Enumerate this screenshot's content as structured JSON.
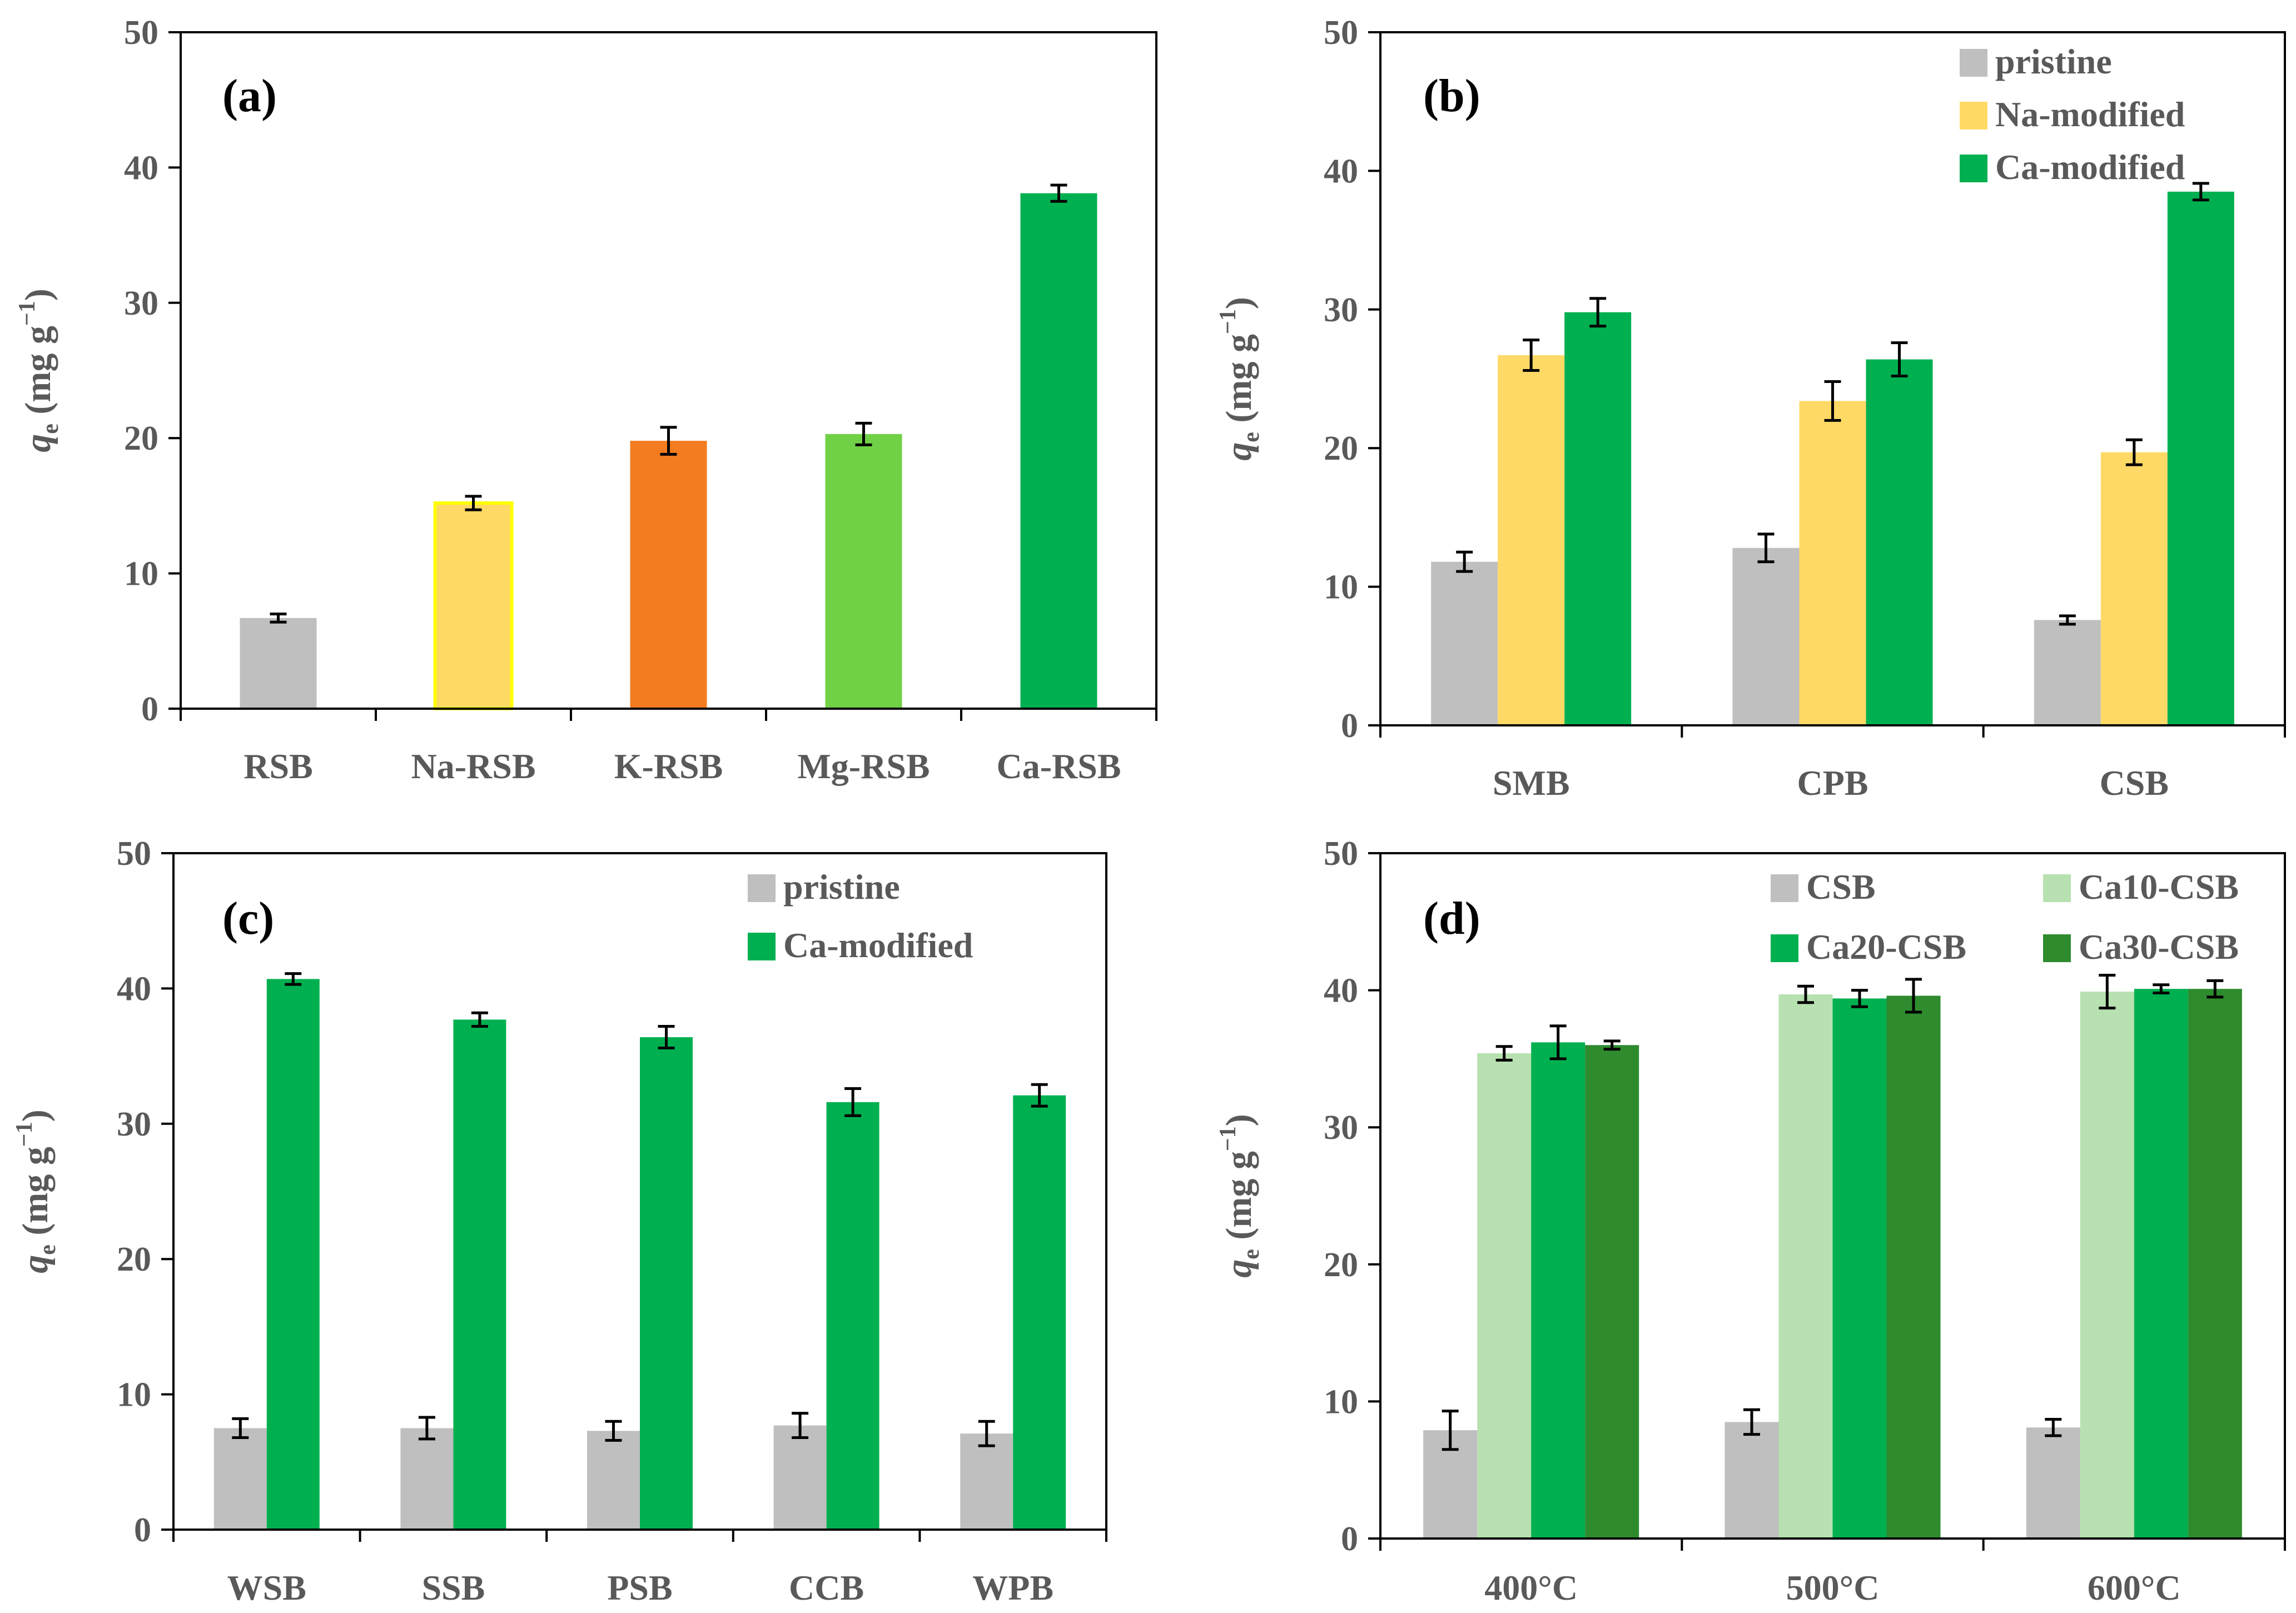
{
  "chart_data": [
    {
      "panel": "(a)",
      "type": "bar",
      "ylabel": {
        "symbol": "q",
        "subscript": "e",
        "units": "(mg g",
        "superscript": "−1",
        "close": ")"
      },
      "ylim": [
        0,
        50
      ],
      "yticks": [
        0,
        10,
        20,
        30,
        40,
        50
      ],
      "categories": [
        "RSB",
        "Na-RSB",
        "K-RSB",
        "Mg-RSB",
        "Ca-RSB"
      ],
      "series": [
        {
          "name": "",
          "values": [
            6.7,
            15.2,
            19.8,
            20.3,
            38.1
          ],
          "errors": [
            0.3,
            0.5,
            1.0,
            0.8,
            0.6
          ],
          "colors": [
            "#bfbfbf",
            "#ffd966",
            "#f47c20",
            "#70d146",
            "#00b050"
          ],
          "strokes": [
            "none",
            "#ffff00",
            "none",
            "none",
            "none"
          ]
        }
      ],
      "legend": null
    },
    {
      "panel": "(b)",
      "type": "bar",
      "ylabel": {
        "symbol": "q",
        "subscript": "e",
        "units": "(mg g",
        "superscript": "−1",
        "close": ")"
      },
      "ylim": [
        0,
        50
      ],
      "yticks": [
        0,
        10,
        20,
        30,
        40,
        50
      ],
      "categories": [
        "SMB",
        "CPB",
        "CSB"
      ],
      "series": [
        {
          "name": "pristine",
          "color": "#bfbfbf",
          "values": [
            11.8,
            12.8,
            7.6
          ],
          "errors": [
            0.7,
            1.0,
            0.3
          ]
        },
        {
          "name": "Na-modified",
          "color": "#ffd966",
          "values": [
            26.7,
            23.4,
            19.7
          ],
          "errors": [
            1.1,
            1.4,
            0.9
          ]
        },
        {
          "name": "Ca-modified",
          "color": "#00b050",
          "values": [
            29.8,
            26.4,
            38.5
          ],
          "errors": [
            1.0,
            1.2,
            0.6
          ]
        }
      ],
      "legend": "top-right"
    },
    {
      "panel": "(c)",
      "type": "bar",
      "ylabel": {
        "symbol": "q",
        "subscript": "e",
        "units": "(mg g",
        "superscript": "−1",
        "close": ")"
      },
      "ylim": [
        0,
        50
      ],
      "yticks": [
        0,
        10,
        20,
        30,
        40,
        50
      ],
      "categories": [
        "WSB",
        "SSB",
        "PSB",
        "CCB",
        "WPB"
      ],
      "series": [
        {
          "name": "pristine",
          "color": "#bfbfbf",
          "values": [
            7.5,
            7.5,
            7.3,
            7.7,
            7.1
          ],
          "errors": [
            0.7,
            0.8,
            0.7,
            0.9,
            0.9
          ]
        },
        {
          "name": "Ca-modified",
          "color": "#00b050",
          "values": [
            40.7,
            37.7,
            36.4,
            31.6,
            32.1
          ],
          "errors": [
            0.4,
            0.5,
            0.8,
            1.0,
            0.8
          ]
        }
      ],
      "legend": "top-right"
    },
    {
      "panel": "(d)",
      "type": "bar",
      "ylabel": {
        "symbol": "q",
        "subscript": "e",
        "units": "(mg g",
        "superscript": "−1",
        "close": ")"
      },
      "ylim": [
        0,
        50
      ],
      "yticks": [
        0,
        10,
        20,
        30,
        40,
        50
      ],
      "categories": [
        "400°C",
        "500°C",
        "600°C"
      ],
      "series": [
        {
          "name": "CSB",
          "color": "#bfbfbf",
          "values": [
            7.9,
            8.5,
            8.1
          ],
          "errors": [
            1.4,
            0.9,
            0.6
          ]
        },
        {
          "name": "Ca10-CSB",
          "color": "#b7e1b0",
          "values": [
            35.4,
            39.7,
            39.9
          ],
          "errors": [
            0.5,
            0.6,
            1.2
          ]
        },
        {
          "name": "Ca20-CSB",
          "color": "#00b050",
          "values": [
            36.2,
            39.4,
            40.1
          ],
          "errors": [
            1.2,
            0.6,
            0.3
          ]
        },
        {
          "name": "Ca30-CSB",
          "color": "#2e8b2e",
          "values": [
            36.0,
            39.6,
            40.1
          ],
          "errors": [
            0.3,
            1.2,
            0.6
          ]
        }
      ],
      "legend": "top-right"
    }
  ]
}
